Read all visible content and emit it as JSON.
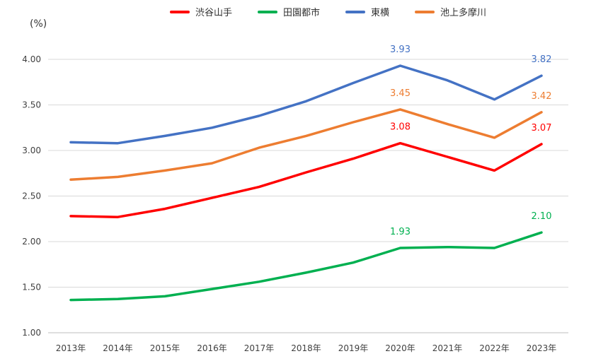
{
  "unit_label": "(%)",
  "chart_data": {
    "type": "line",
    "ylim": [
      1.0,
      4.0
    ],
    "yticks": [
      "1.00",
      "1.50",
      "2.00",
      "2.50",
      "3.00",
      "3.50",
      "4.00"
    ],
    "grid": true,
    "legend_position": "top",
    "categories": [
      "2013年",
      "2014年",
      "2015年",
      "2016年",
      "2017年",
      "2018年",
      "2019年",
      "2020年",
      "2021年",
      "2022年",
      "2023年"
    ],
    "series": [
      {
        "name": "渋谷山手",
        "color": "#ff0000",
        "values": [
          2.28,
          2.27,
          2.36,
          2.48,
          2.6,
          2.76,
          2.91,
          3.08,
          2.93,
          2.78,
          3.07
        ],
        "labels": [
          {
            "index": 7,
            "text": "3.08"
          },
          {
            "index": 10,
            "text": "3.07"
          }
        ]
      },
      {
        "name": "田園都市",
        "color": "#00b050",
        "values": [
          1.36,
          1.37,
          1.4,
          1.48,
          1.56,
          1.66,
          1.77,
          1.93,
          1.94,
          1.93,
          2.1
        ],
        "labels": [
          {
            "index": 7,
            "text": "1.93"
          },
          {
            "index": 10,
            "text": "2.10"
          }
        ]
      },
      {
        "name": "東横",
        "color": "#4472c4",
        "values": [
          3.09,
          3.08,
          3.16,
          3.25,
          3.38,
          3.54,
          3.74,
          3.93,
          3.77,
          3.56,
          3.82
        ],
        "labels": [
          {
            "index": 7,
            "text": "3.93"
          },
          {
            "index": 10,
            "text": "3.82"
          }
        ]
      },
      {
        "name": "池上多摩川",
        "color": "#ed7d31",
        "values": [
          2.68,
          2.71,
          2.78,
          2.86,
          3.03,
          3.16,
          3.31,
          3.45,
          3.29,
          3.14,
          3.42
        ],
        "labels": [
          {
            "index": 7,
            "text": "3.45"
          },
          {
            "index": 10,
            "text": "3.42"
          }
        ]
      }
    ]
  }
}
